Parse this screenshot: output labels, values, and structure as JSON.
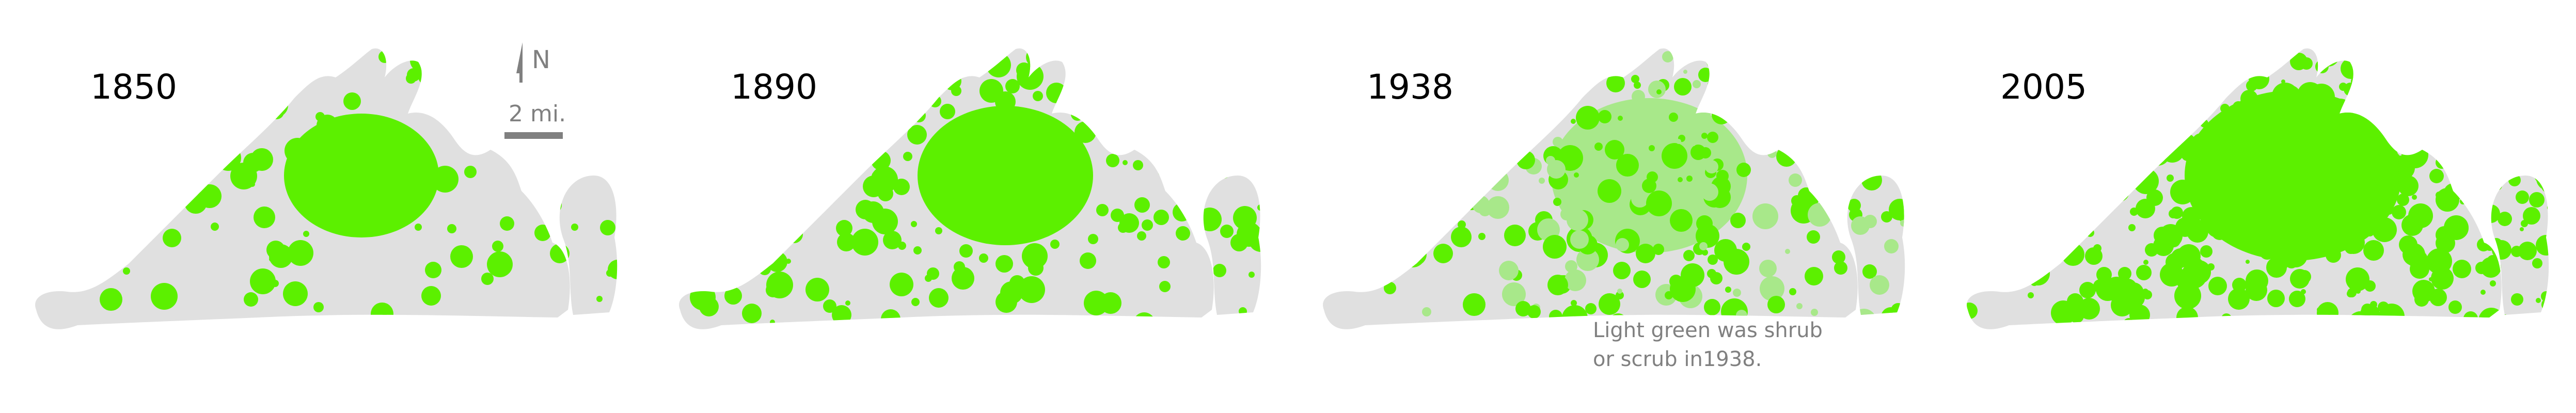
{
  "panels": [
    {
      "year": "1850"
    },
    {
      "year": "1890"
    },
    {
      "year": "1938"
    },
    {
      "year": "2005"
    }
  ],
  "north_arrow": {
    "label": "N"
  },
  "scale_bar": {
    "label": "2 mi."
  },
  "note": {
    "line1": "Light green was shrub",
    "line2": "or scrub in1938."
  },
  "colors": {
    "land": "#e0e0e0",
    "forest": "#5cf000",
    "shrub": "#a8e88a",
    "text": "#808080"
  }
}
